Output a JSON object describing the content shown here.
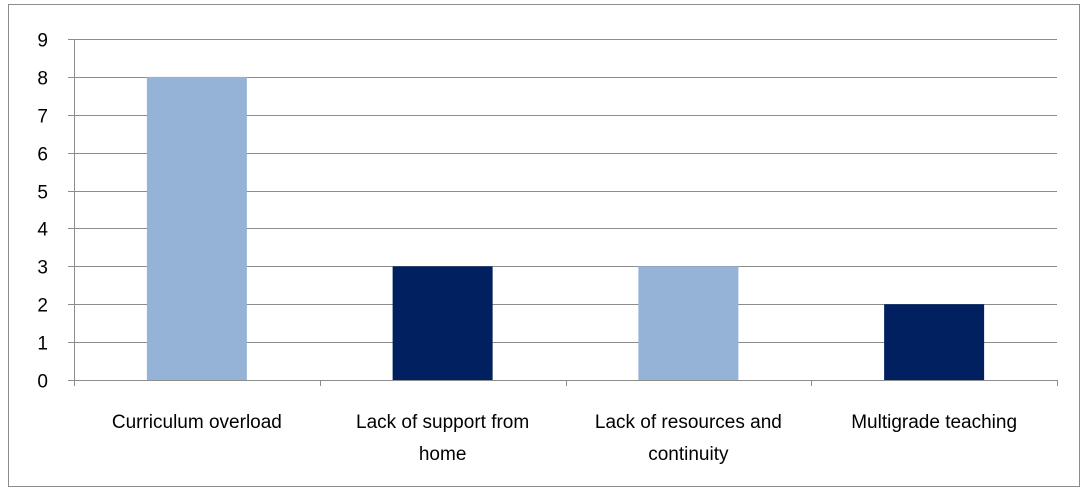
{
  "chart_data": {
    "type": "bar",
    "categories": [
      "Curriculum overload",
      "Lack of support from home",
      "Lack of resources and continuity",
      "Multigrade teaching"
    ],
    "category_lines": [
      [
        "Curriculum overload"
      ],
      [
        "Lack of support from",
        "home"
      ],
      [
        "Lack of resources and",
        "continuity"
      ],
      [
        "Multigrade teaching"
      ]
    ],
    "values": [
      8,
      3,
      3,
      2
    ],
    "bar_colors": [
      "#95b3d7",
      "#002060",
      "#95b3d7",
      "#002060"
    ],
    "ylim": [
      0,
      9
    ],
    "yticks": [
      0,
      1,
      2,
      3,
      4,
      5,
      6,
      7,
      8,
      9
    ],
    "grid": true,
    "legend": "none",
    "title": "",
    "xlabel": "",
    "ylabel": ""
  }
}
